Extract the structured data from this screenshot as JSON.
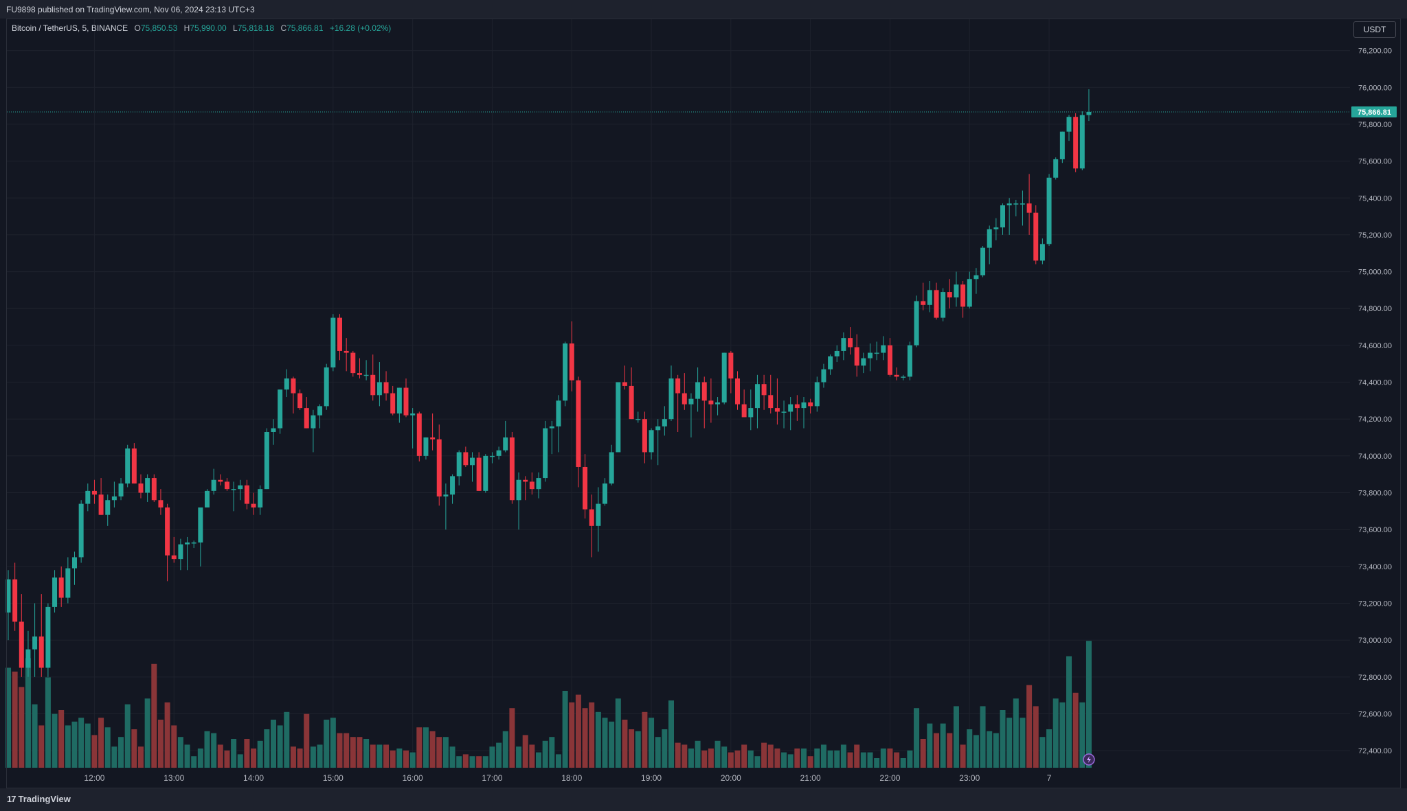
{
  "header": {
    "published": "FU9898 published on TradingView.com, Nov 06, 2024 23:13 UTC+3"
  },
  "legend": {
    "symbol": "Bitcoin / TetherUS, 5, BINANCE",
    "o_label": "O",
    "o_value": "75,850.53",
    "h_label": "H",
    "h_value": "75,990.00",
    "l_label": "L",
    "l_value": "75,818.18",
    "c_label": "C",
    "c_value": "75,866.81",
    "change": "+16.28 (+0.02%)"
  },
  "unit_button": "USDT",
  "footer": {
    "brand": "TradingView",
    "brand_mark": "17"
  },
  "colors": {
    "up": "#26a69a",
    "down": "#f23645",
    "up_volume": "#1f6b63",
    "down_volume": "#8a3538",
    "background": "#131722",
    "grid": "#1e222d"
  },
  "chart_data": {
    "type": "candlestick",
    "ylim": [
      72300,
      76370
    ],
    "last_price": 75866.81,
    "last_price_label": "75,866.81",
    "y_ticks": [
      76200,
      76000,
      75800,
      75600,
      75400,
      75200,
      75000,
      74800,
      74600,
      74400,
      74200,
      74000,
      73800,
      73600,
      73400,
      73200,
      73000,
      72800,
      72600,
      72400
    ],
    "y_tick_labels": [
      "76,200.00",
      "76,000.00",
      "75,800.00",
      "75,600.00",
      "75,400.00",
      "75,200.00",
      "75,000.00",
      "74,800.00",
      "74,600.00",
      "74,400.00",
      "74,200.00",
      "74,000.00",
      "73,800.00",
      "73,600.00",
      "73,400.00",
      "73,200.00",
      "73,000.00",
      "72,800.00",
      "72,600.00",
      "72,400.00"
    ],
    "x_ticks": [
      {
        "bar": 13,
        "label": "12:00"
      },
      {
        "bar": 25,
        "label": "13:00"
      },
      {
        "bar": 37,
        "label": "14:00"
      },
      {
        "bar": 49,
        "label": "15:00"
      },
      {
        "bar": 61,
        "label": "16:00"
      },
      {
        "bar": 73,
        "label": "17:00"
      },
      {
        "bar": 85,
        "label": "18:00"
      },
      {
        "bar": 97,
        "label": "19:00"
      },
      {
        "bar": 109,
        "label": "20:00"
      },
      {
        "bar": 121,
        "label": "21:00"
      },
      {
        "bar": 133,
        "label": "22:00"
      },
      {
        "bar": 145,
        "label": "23:00"
      },
      {
        "bar": 157,
        "label": "7"
      }
    ],
    "ohlc": [
      [
        73150,
        73380,
        73000,
        73330,
        0.52
      ],
      [
        73330,
        73420,
        73050,
        73100,
        0.5
      ],
      [
        73100,
        73250,
        72800,
        72850,
        0.42
      ],
      [
        72850,
        73050,
        72800,
        72950,
        0.57
      ],
      [
        72950,
        73200,
        72800,
        73020,
        0.33
      ],
      [
        73020,
        73250,
        72800,
        72850,
        0.22
      ],
      [
        72850,
        73200,
        72800,
        73180,
        0.47
      ],
      [
        73180,
        73380,
        73150,
        73340,
        0.28
      ],
      [
        73340,
        73400,
        73180,
        73230,
        0.3
      ],
      [
        73230,
        73450,
        73200,
        73390,
        0.22
      ],
      [
        73390,
        73480,
        73300,
        73450,
        0.24
      ],
      [
        73450,
        73760,
        73420,
        73740,
        0.26
      ],
      [
        73740,
        73850,
        73700,
        73810,
        0.23
      ],
      [
        73810,
        73870,
        73740,
        73790,
        0.17
      ],
      [
        73790,
        73880,
        73680,
        73680,
        0.26
      ],
      [
        73680,
        73790,
        73620,
        73760,
        0.21
      ],
      [
        73760,
        73860,
        73720,
        73780,
        0.11
      ],
      [
        73780,
        73880,
        73760,
        73850,
        0.16
      ],
      [
        73850,
        74060,
        73830,
        74040,
        0.33
      ],
      [
        74040,
        74070,
        73850,
        73850,
        0.2
      ],
      [
        73850,
        73900,
        73770,
        73800,
        0.11
      ],
      [
        73800,
        73900,
        73750,
        73880,
        0.36
      ],
      [
        73880,
        73900,
        73750,
        73760,
        0.54
      ],
      [
        73760,
        73820,
        73680,
        73720,
        0.25
      ],
      [
        73720,
        73740,
        73320,
        73460,
        0.34
      ],
      [
        73460,
        73560,
        73420,
        73440,
        0.22
      ],
      [
        73440,
        73550,
        73380,
        73520,
        0.16
      ],
      [
        73520,
        73560,
        73380,
        73530,
        0.12
      ],
      [
        73530,
        73540,
        73500,
        73530,
        0.06
      ],
      [
        73530,
        73720,
        73400,
        73720,
        0.1
      ],
      [
        73720,
        73820,
        73720,
        73810,
        0.19
      ],
      [
        73810,
        73930,
        73790,
        73870,
        0.18
      ],
      [
        73870,
        73900,
        73840,
        73860,
        0.12
      ],
      [
        73860,
        73880,
        73810,
        73820,
        0.09
      ],
      [
        73820,
        73860,
        73700,
        73820,
        0.15
      ],
      [
        73820,
        73870,
        73760,
        73840,
        0.07
      ],
      [
        73840,
        73870,
        73710,
        73740,
        0.15
      ],
      [
        73740,
        73800,
        73680,
        73720,
        0.1
      ],
      [
        73720,
        73840,
        73680,
        73820,
        0.14
      ],
      [
        73820,
        74150,
        73820,
        74130,
        0.2
      ],
      [
        74130,
        74200,
        74060,
        74150,
        0.25
      ],
      [
        74150,
        74360,
        74120,
        74360,
        0.22
      ],
      [
        74360,
        74470,
        74320,
        74420,
        0.29
      ],
      [
        74420,
        74430,
        74230,
        74340,
        0.11
      ],
      [
        74340,
        74360,
        74250,
        74260,
        0.1
      ],
      [
        74260,
        74320,
        74150,
        74150,
        0.28
      ],
      [
        74150,
        74250,
        74020,
        74220,
        0.11
      ],
      [
        74220,
        74280,
        74150,
        74270,
        0.12
      ],
      [
        74270,
        74500,
        74250,
        74480,
        0.25
      ],
      [
        74480,
        74770,
        74460,
        74750,
        0.26
      ],
      [
        74750,
        74770,
        74520,
        74570,
        0.18
      ],
      [
        74570,
        74640,
        74460,
        74560,
        0.18
      ],
      [
        74560,
        74570,
        74430,
        74450,
        0.16
      ],
      [
        74450,
        74530,
        74420,
        74440,
        0.16
      ],
      [
        74440,
        74520,
        74410,
        74440,
        0.15
      ],
      [
        74440,
        74550,
        74300,
        74330,
        0.12
      ],
      [
        74330,
        74510,
        74270,
        74400,
        0.12
      ],
      [
        74400,
        74460,
        74300,
        74340,
        0.12
      ],
      [
        74340,
        74380,
        74220,
        74230,
        0.09
      ],
      [
        74230,
        74370,
        74180,
        74370,
        0.1
      ],
      [
        74370,
        74420,
        74210,
        74220,
        0.09
      ],
      [
        74220,
        74260,
        74040,
        74230,
        0.08
      ],
      [
        74230,
        74240,
        73970,
        74000,
        0.21
      ],
      [
        74000,
        74100,
        73980,
        74100,
        0.21
      ],
      [
        74100,
        74230,
        74030,
        74090,
        0.19
      ],
      [
        74090,
        74170,
        73730,
        73780,
        0.16
      ],
      [
        73780,
        73850,
        73600,
        73790,
        0.16
      ],
      [
        73790,
        73900,
        73740,
        73890,
        0.11
      ],
      [
        73890,
        74030,
        73840,
        74020,
        0.06
      ],
      [
        74020,
        74050,
        73940,
        73950,
        0.07
      ],
      [
        73950,
        74020,
        73860,
        73990,
        0.06
      ],
      [
        73990,
        74020,
        73810,
        73810,
        0.06
      ],
      [
        73810,
        74010,
        73800,
        74000,
        0.06
      ],
      [
        74000,
        74020,
        73960,
        74000,
        0.11
      ],
      [
        74000,
        74050,
        73980,
        74030,
        0.13
      ],
      [
        74030,
        74190,
        74020,
        74100,
        0.19
      ],
      [
        74100,
        74130,
        73740,
        73760,
        0.31
      ],
      [
        73760,
        73910,
        73600,
        73870,
        0.11
      ],
      [
        73870,
        73890,
        73760,
        73860,
        0.17
      ],
      [
        73860,
        73910,
        73790,
        73820,
        0.12
      ],
      [
        73820,
        73910,
        73770,
        73880,
        0.08
      ],
      [
        73880,
        74190,
        73860,
        74150,
        0.14
      ],
      [
        74150,
        74190,
        74010,
        74160,
        0.16
      ],
      [
        74160,
        74330,
        74020,
        74300,
        0.07
      ],
      [
        74300,
        74620,
        74270,
        74610,
        0.4
      ],
      [
        74610,
        74730,
        74350,
        74410,
        0.34
      ],
      [
        74410,
        74430,
        73830,
        73940,
        0.38
      ],
      [
        73940,
        74010,
        73660,
        73710,
        0.31
      ],
      [
        73710,
        73790,
        73450,
        73620,
        0.34
      ],
      [
        73620,
        73830,
        73480,
        73740,
        0.29
      ],
      [
        73740,
        73880,
        73730,
        73850,
        0.26
      ],
      [
        73850,
        74060,
        73840,
        74020,
        0.24
      ],
      [
        74020,
        74400,
        74020,
        74400,
        0.36
      ],
      [
        74400,
        74490,
        74360,
        74380,
        0.25
      ],
      [
        74380,
        74480,
        74200,
        74200,
        0.2
      ],
      [
        74200,
        74240,
        74180,
        74200,
        0.19
      ],
      [
        74200,
        74240,
        73960,
        74020,
        0.29
      ],
      [
        74020,
        74150,
        73980,
        74140,
        0.26
      ],
      [
        74140,
        74200,
        73950,
        74160,
        0.16
      ],
      [
        74160,
        74270,
        74110,
        74200,
        0.2
      ],
      [
        74200,
        74490,
        74190,
        74420,
        0.35
      ],
      [
        74420,
        74440,
        74130,
        74340,
        0.13
      ],
      [
        74340,
        74450,
        74250,
        74280,
        0.12
      ],
      [
        74280,
        74340,
        74100,
        74310,
        0.1
      ],
      [
        74310,
        74480,
        74240,
        74400,
        0.14
      ],
      [
        74400,
        74430,
        74150,
        74300,
        0.09
      ],
      [
        74300,
        74420,
        74180,
        74280,
        0.1
      ],
      [
        74280,
        74320,
        74220,
        74290,
        0.14
      ],
      [
        74290,
        74560,
        74280,
        74560,
        0.11
      ],
      [
        74560,
        74570,
        74340,
        74420,
        0.08
      ],
      [
        74420,
        74460,
        74250,
        74280,
        0.09
      ],
      [
        74280,
        74360,
        74210,
        74210,
        0.12
      ],
      [
        74210,
        74360,
        74140,
        74260,
        0.09
      ],
      [
        74260,
        74440,
        74150,
        74390,
        0.06
      ],
      [
        74390,
        74440,
        74250,
        74330,
        0.13
      ],
      [
        74330,
        74440,
        74230,
        74260,
        0.12
      ],
      [
        74260,
        74420,
        74170,
        74240,
        0.1
      ],
      [
        74240,
        74300,
        74150,
        74240,
        0.08
      ],
      [
        74240,
        74320,
        74140,
        74280,
        0.07
      ],
      [
        74280,
        74330,
        74190,
        74260,
        0.1
      ],
      [
        74260,
        74320,
        74150,
        74290,
        0.1
      ],
      [
        74290,
        74310,
        74230,
        74270,
        0.06
      ],
      [
        74270,
        74430,
        74240,
        74400,
        0.1
      ],
      [
        74400,
        74500,
        74370,
        74470,
        0.12
      ],
      [
        74470,
        74550,
        74440,
        74540,
        0.09
      ],
      [
        74540,
        74600,
        74510,
        74570,
        0.09
      ],
      [
        74570,
        74670,
        74520,
        74640,
        0.12
      ],
      [
        74640,
        74700,
        74550,
        74590,
        0.08
      ],
      [
        74590,
        74660,
        74430,
        74490,
        0.12
      ],
      [
        74490,
        74560,
        74450,
        74530,
        0.08
      ],
      [
        74530,
        74610,
        74460,
        74560,
        0.08
      ],
      [
        74560,
        74620,
        74520,
        74560,
        0.05
      ],
      [
        74560,
        74650,
        74520,
        74600,
        0.1
      ],
      [
        74600,
        74640,
        74430,
        74440,
        0.1
      ],
      [
        74440,
        74480,
        74410,
        74430,
        0.08
      ],
      [
        74430,
        74440,
        74410,
        74430,
        0.05
      ],
      [
        74430,
        74620,
        74410,
        74600,
        0.09
      ],
      [
        74600,
        74870,
        74590,
        74840,
        0.31
      ],
      [
        74840,
        74940,
        74790,
        74820,
        0.15
      ],
      [
        74820,
        74950,
        74780,
        74900,
        0.23
      ],
      [
        74900,
        74940,
        74740,
        74750,
        0.18
      ],
      [
        74750,
        74910,
        74730,
        74890,
        0.23
      ],
      [
        74890,
        74960,
        74800,
        74860,
        0.18
      ],
      [
        74860,
        75000,
        74810,
        74930,
        0.32
      ],
      [
        74930,
        74950,
        74750,
        74810,
        0.12
      ],
      [
        74810,
        75000,
        74800,
        74960,
        0.2
      ],
      [
        74960,
        75020,
        74880,
        74980,
        0.17
      ],
      [
        74980,
        75140,
        74970,
        75130,
        0.32
      ]
    ],
    "ohlc_tail": [
      [
        75130,
        75250,
        75040,
        75230,
        0.19
      ],
      [
        75230,
        75290,
        75170,
        75240,
        0.18
      ],
      [
        75240,
        75370,
        75200,
        75360,
        0.3
      ],
      [
        75360,
        75400,
        75200,
        75370,
        0.26
      ],
      [
        75370,
        75390,
        75300,
        75370,
        0.36
      ],
      [
        75370,
        75440,
        75250,
        75370,
        0.26
      ],
      [
        75370,
        75530,
        75200,
        75320,
        0.43
      ],
      [
        75320,
        75360,
        75040,
        75060,
        0.32
      ],
      [
        75060,
        75180,
        75040,
        75150,
        0.16
      ],
      [
        75150,
        75530,
        75140,
        75510,
        0.2
      ],
      [
        75510,
        75620,
        75500,
        75610,
        0.36
      ],
      [
        75610,
        75760,
        75590,
        75760,
        0.34
      ],
      [
        75760,
        75850,
        75710,
        75840,
        0.58
      ],
      [
        75840,
        75860,
        75540,
        75560,
        0.39
      ],
      [
        75560,
        75870,
        75550,
        75850,
        0.34
      ],
      [
        75850,
        75990,
        75818,
        75867,
        0.66
      ]
    ]
  }
}
